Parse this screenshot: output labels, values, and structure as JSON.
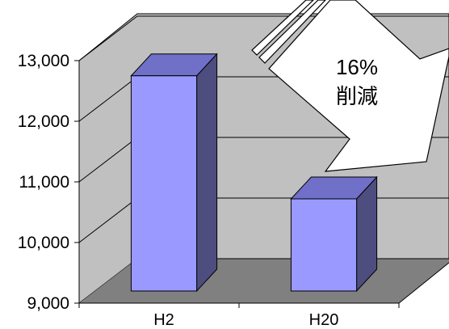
{
  "chart_data": {
    "type": "bar",
    "categories": [
      "H2",
      "H20"
    ],
    "values": [
      12550,
      10520
    ],
    "title": "",
    "xlabel": "",
    "ylabel": "",
    "ylim": [
      9000,
      13000
    ],
    "yticks": [
      "9,000",
      "10,000",
      "11,000",
      "12,000",
      "13,000"
    ],
    "annotation": {
      "percent": "16%",
      "label": "削減"
    },
    "grid": true,
    "legend": "none",
    "style": "3d",
    "colors": {
      "bar_front": "#9999ff",
      "bar_top": "#7070c8",
      "bar_side": "#4d4d80",
      "wall": "#c0c0c0",
      "floor": "#808080"
    }
  }
}
